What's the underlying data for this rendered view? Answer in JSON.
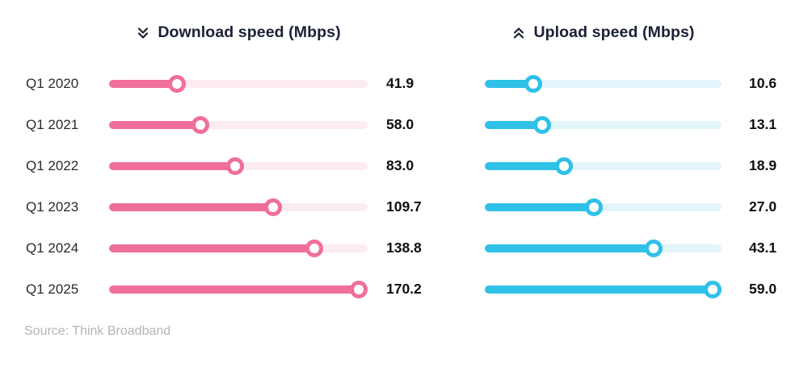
{
  "header": {
    "download_title": "Download speed (Mbps)",
    "upload_title": "Upload speed (Mbps)"
  },
  "chart_data": {
    "type": "bar",
    "style": "lollipop",
    "orientation": "horizontal",
    "grid": false,
    "legend_position": "column_headers",
    "categories": [
      "Q1 2020",
      "Q1 2021",
      "Q1 2022",
      "Q1 2023",
      "Q1 2024",
      "Q1 2025"
    ],
    "series": [
      {
        "name": "Download speed (Mbps)",
        "color": "#ef6f98",
        "track_color": "#fcecf1",
        "values": [
          41.9,
          58.0,
          83.0,
          109.7,
          138.8,
          170.2
        ],
        "axis_max": 170.2
      },
      {
        "name": "Upload speed (Mbps)",
        "color": "#2fc1e8",
        "track_color": "#e4f4fb",
        "values": [
          10.6,
          13.1,
          18.9,
          27.0,
          43.1,
          59.0
        ],
        "axis_max": 59.0
      }
    ],
    "value_label_decimals": 1
  },
  "source": "Source: Think Broadband",
  "colors": {
    "background": "#ffffff",
    "title_text": "#1b2136",
    "label_text": "#2b2b2b",
    "value_text": "#101010",
    "source_text": "#b4b4b4"
  }
}
